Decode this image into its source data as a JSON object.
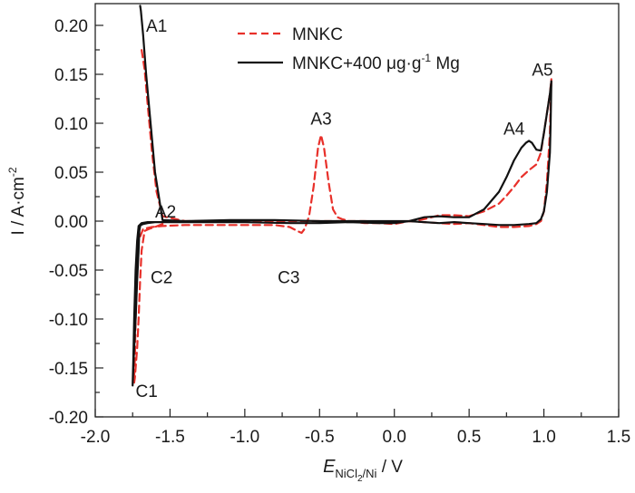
{
  "chart_data": {
    "type": "line",
    "title": "",
    "xlabel": {
      "main": "E",
      "subscript": "NiCl2/Ni",
      "sub_parts": [
        "NiCl",
        "2",
        "/Ni"
      ],
      "unit": " / V"
    },
    "ylabel": {
      "main": "I / A·cm",
      "superscript": "-2"
    },
    "xlim": [
      -2.0,
      1.5
    ],
    "ylim": [
      -0.2,
      0.22
    ],
    "x_ticks": [
      -2.0,
      -1.5,
      -1.0,
      -0.5,
      0.0,
      0.5,
      1.0,
      1.5
    ],
    "x_tick_labels": [
      "-2.0",
      "-1.5",
      "-1.0",
      "-0.5",
      "0.0",
      "0.5",
      "1.0",
      "1.5"
    ],
    "x_minor_ticks": [
      -1.75,
      -1.25,
      -0.75,
      -0.25,
      0.25,
      0.75,
      1.25
    ],
    "y_ticks": [
      -0.2,
      -0.15,
      -0.1,
      -0.05,
      0.0,
      0.05,
      0.1,
      0.15,
      0.2
    ],
    "y_tick_labels": [
      "-0.20",
      "-0.15",
      "-0.10",
      "-0.05",
      "0.00",
      "0.05",
      "0.10",
      "0.15",
      "0.20"
    ],
    "y_minor_ticks": [
      -0.175,
      -0.125,
      -0.075,
      -0.025,
      0.025,
      0.075,
      0.125,
      0.175
    ],
    "grid": false,
    "legend": {
      "position": "top-center",
      "entries": [
        {
          "label": "MNKC",
          "style": "dashed",
          "color": "#e8302a"
        },
        {
          "label_parts": [
            "MNKC+400 μg·g",
            "-1",
            " Mg"
          ],
          "label": "MNKC+400 μg·g-1 Mg",
          "style": "solid",
          "color": "#111111"
        }
      ]
    },
    "series": [
      {
        "name": "MNKC",
        "style": "dashed",
        "color": "#e8302a",
        "x": [
          -1.55,
          -1.6,
          -1.64,
          -1.67,
          -1.69,
          -1.7,
          -1.71,
          -1.72,
          -1.73,
          -1.735,
          -1.74,
          -1.74,
          -1.735,
          -1.73,
          -1.72,
          -1.71,
          -1.68,
          -1.62,
          -1.55,
          -1.4,
          -1.2,
          -1.0,
          -0.8,
          -0.7,
          -0.65,
          -0.62,
          -0.6,
          -0.57,
          -0.54,
          -0.51,
          -0.49,
          -0.47,
          -0.44,
          -0.41,
          -0.38,
          -0.35,
          -0.3,
          -0.2,
          -0.1,
          0.0,
          0.1,
          0.2,
          0.3,
          0.4,
          0.5,
          0.6,
          0.7,
          0.75,
          0.8,
          0.85,
          0.9,
          0.95,
          0.98,
          1.0,
          1.02,
          1.04,
          1.05,
          1.045,
          1.04,
          1.02,
          1.0,
          0.98,
          0.95,
          0.9,
          0.8,
          0.7,
          0.6,
          0.5,
          0.4,
          0.3,
          0.2,
          0.1,
          0.0,
          -0.2,
          -0.5,
          -0.8,
          -1.1,
          -1.4,
          -1.55,
          -1.59,
          -1.62,
          -1.65,
          -1.67,
          -1.69,
          -1.7
        ],
        "y": [
          -0.003,
          -0.006,
          -0.008,
          -0.01,
          -0.03,
          -0.06,
          -0.1,
          -0.13,
          -0.15,
          -0.16,
          -0.165,
          -0.16,
          -0.14,
          -0.1,
          -0.05,
          -0.02,
          -0.008,
          -0.006,
          -0.005,
          -0.004,
          -0.004,
          -0.004,
          -0.004,
          -0.006,
          -0.01,
          -0.012,
          -0.008,
          0.005,
          0.035,
          0.075,
          0.088,
          0.075,
          0.04,
          0.012,
          0.004,
          0.002,
          0.0,
          -0.002,
          -0.002,
          -0.003,
          0.0,
          0.002,
          0.006,
          0.006,
          0.005,
          0.01,
          0.018,
          0.026,
          0.035,
          0.045,
          0.052,
          0.058,
          0.07,
          0.09,
          0.11,
          0.13,
          0.145,
          0.12,
          0.09,
          0.04,
          0.01,
          0.0,
          -0.003,
          -0.005,
          -0.006,
          -0.006,
          -0.004,
          -0.002,
          -0.003,
          -0.002,
          -0.001,
          0.0,
          -0.001,
          0.0,
          0.0,
          0.0,
          0.0,
          0.0,
          0.005,
          0.03,
          0.07,
          0.12,
          0.155,
          0.175,
          0.178
        ]
      },
      {
        "name": "MNKC+400 μg·g-1 Mg",
        "style": "solid",
        "color": "#111111",
        "x": [
          -1.55,
          -1.6,
          -1.65,
          -1.68,
          -1.695,
          -1.7,
          -1.705,
          -1.71,
          -1.72,
          -1.73,
          -1.74,
          -1.745,
          -1.75,
          -1.745,
          -1.74,
          -1.73,
          -1.72,
          -1.71,
          -1.69,
          -1.65,
          -1.55,
          -1.3,
          -1.0,
          -0.7,
          -0.5,
          -0.3,
          -0.1,
          0.0,
          0.1,
          0.2,
          0.3,
          0.4,
          0.5,
          0.6,
          0.7,
          0.75,
          0.8,
          0.85,
          0.88,
          0.9,
          0.92,
          0.95,
          0.98,
          1.0,
          1.02,
          1.04,
          1.05,
          1.045,
          1.04,
          1.02,
          1.0,
          0.98,
          0.95,
          0.9,
          0.8,
          0.7,
          0.6,
          0.5,
          0.4,
          0.3,
          0.2,
          0.1,
          0.0,
          -0.2,
          -0.5,
          -0.8,
          -1.1,
          -1.4,
          -1.55,
          -1.6,
          -1.63,
          -1.66,
          -1.68,
          -1.695,
          -1.7
        ],
        "y": [
          -0.001,
          -0.001,
          -0.002,
          -0.003,
          -0.004,
          -0.005,
          -0.01,
          -0.03,
          -0.06,
          -0.1,
          -0.13,
          -0.15,
          -0.168,
          -0.14,
          -0.1,
          -0.05,
          -0.02,
          -0.005,
          -0.002,
          -0.001,
          -0.001,
          -0.001,
          -0.001,
          -0.002,
          -0.002,
          -0.001,
          -0.002,
          -0.002,
          0.0,
          0.004,
          0.005,
          0.004,
          0.004,
          0.012,
          0.03,
          0.045,
          0.062,
          0.075,
          0.08,
          0.082,
          0.08,
          0.073,
          0.072,
          0.09,
          0.11,
          0.13,
          0.143,
          0.1,
          0.07,
          0.03,
          0.01,
          0.002,
          -0.002,
          -0.003,
          -0.004,
          -0.004,
          -0.003,
          -0.002,
          -0.001,
          -0.002,
          -0.001,
          0.0,
          0.0,
          0.0,
          0.0,
          0.001,
          0.001,
          0.0,
          0.001,
          0.05,
          0.1,
          0.15,
          0.19,
          0.215,
          0.22
        ]
      }
    ],
    "annotations": [
      {
        "text": "A1",
        "x": -1.66,
        "y": 0.2
      },
      {
        "text": "A2",
        "x": -1.6,
        "y": 0.01
      },
      {
        "text": "A3",
        "x": -0.56,
        "y": 0.105
      },
      {
        "text": "A4",
        "x": 0.73,
        "y": 0.095
      },
      {
        "text": "A5",
        "x": 0.92,
        "y": 0.155
      },
      {
        "text": "C1",
        "x": -1.73,
        "y": -0.173
      },
      {
        "text": "C2",
        "x": -1.63,
        "y": -0.057
      },
      {
        "text": "C3",
        "x": -0.78,
        "y": -0.057
      }
    ]
  }
}
